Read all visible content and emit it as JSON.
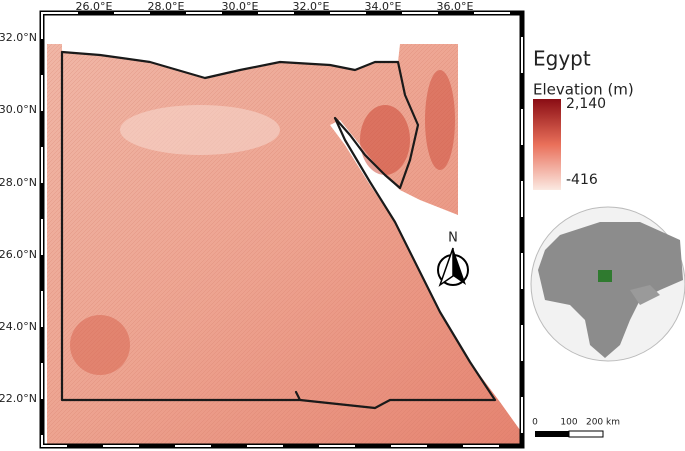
{
  "map": {
    "title": "Egypt",
    "legend": {
      "title": "Elevation (m)",
      "max_label": "2,140",
      "min_label": "-416"
    },
    "lon_labels": [
      "26.0°E",
      "28.0°E",
      "30.0°E",
      "32.0°E",
      "34.0°E",
      "36.0°E"
    ],
    "lat_labels": [
      "32.0°N",
      "30.0°N",
      "28.0°N",
      "26.0°N",
      "24.0°N",
      "22.0°N"
    ],
    "north_arrow": "N",
    "scale_bar": [
      "0",
      "100",
      "200 km"
    ]
  }
}
